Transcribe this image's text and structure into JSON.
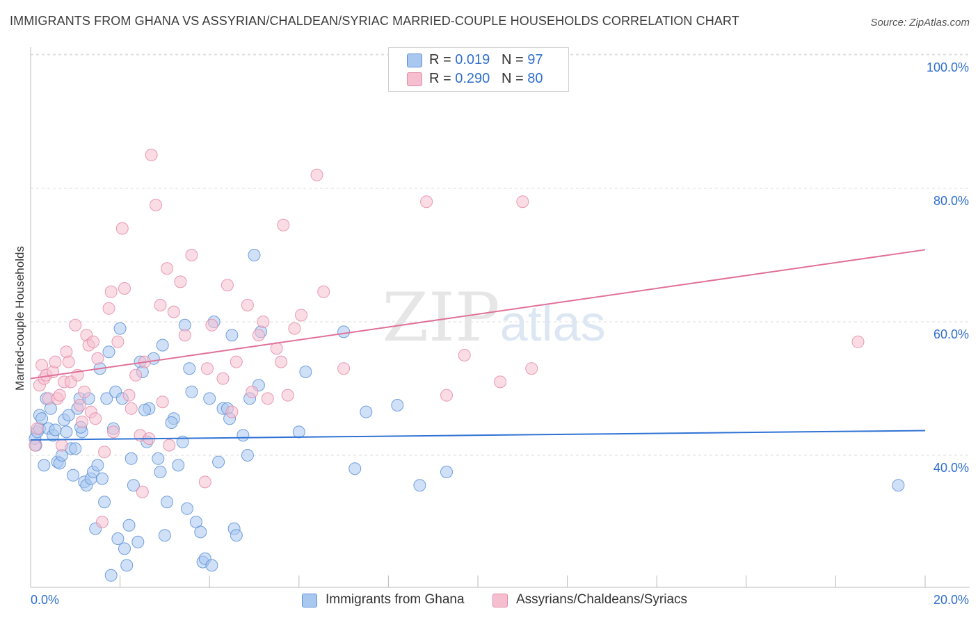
{
  "title": "IMMIGRANTS FROM GHANA VS ASSYRIAN/CHALDEAN/SYRIAC MARRIED-COUPLE HOUSEHOLDS CORRELATION CHART",
  "source": "Source: ZipAtlas.com",
  "watermark": "ZIPatlas",
  "legend": {
    "series1": {
      "r_label": "R =",
      "r_value": "0.019",
      "n_label": "N =",
      "n_value": "97"
    },
    "series2": {
      "r_label": "R =",
      "r_value": "0.290",
      "n_label": "N =",
      "n_value": "80"
    }
  },
  "colors": {
    "blue_fill": "#a9c8f0",
    "blue_stroke": "#5b8fd6",
    "blue_line": "#2f72d4",
    "pink_fill": "#f5bfd0",
    "pink_stroke": "#e48aa8",
    "pink_line": "#e07098",
    "axis_label": "#2f6fcf",
    "grid": "#dddddd"
  },
  "chart_data": {
    "type": "scatter",
    "title": "IMMIGRANTS FROM GHANA VS ASSYRIAN/CHALDEAN/SYRIAC MARRIED-COUPLE HOUSEHOLDS CORRELATION CHART",
    "xlabel": "",
    "ylabel": "Married-couple Households",
    "xlim": [
      0,
      20
    ],
    "ylim": [
      20,
      103
    ],
    "x_tick_labels": [
      "0.0%",
      "20.0%"
    ],
    "y_ticks": [
      40,
      60,
      80,
      100
    ],
    "y_tick_labels": [
      "40.0%",
      "60.0%",
      "80.0%",
      "100.0%"
    ],
    "legend_position": "top-center",
    "series": [
      {
        "name": "Immigrants from Ghana",
        "r": 0.019,
        "n": 97,
        "trend": {
          "x": [
            0,
            20
          ],
          "y": [
            42.3,
            43.7
          ]
        },
        "points": [
          [
            0.1,
            42.5
          ],
          [
            0.15,
            43.5
          ],
          [
            0.2,
            44
          ],
          [
            0.2,
            46
          ],
          [
            0.25,
            45.5
          ],
          [
            0.3,
            38.5
          ],
          [
            0.35,
            48.5
          ],
          [
            0.4,
            44
          ],
          [
            0.45,
            47
          ],
          [
            0.5,
            43
          ],
          [
            0.6,
            39
          ],
          [
            0.65,
            38.8
          ],
          [
            0.7,
            40
          ],
          [
            0.75,
            45.3
          ],
          [
            0.8,
            43.5
          ],
          [
            0.85,
            46
          ],
          [
            0.9,
            41
          ],
          [
            0.95,
            37
          ],
          [
            1.0,
            41
          ],
          [
            1.05,
            47
          ],
          [
            1.1,
            48.5
          ],
          [
            1.15,
            43.5
          ],
          [
            1.2,
            36
          ],
          [
            1.25,
            35.5
          ],
          [
            1.3,
            48.5
          ],
          [
            1.35,
            36.5
          ],
          [
            1.4,
            37.5
          ],
          [
            1.45,
            29
          ],
          [
            1.5,
            38.5
          ],
          [
            1.55,
            53
          ],
          [
            1.6,
            36.5
          ],
          [
            1.65,
            33
          ],
          [
            1.7,
            48.5
          ],
          [
            1.75,
            55.5
          ],
          [
            1.8,
            22
          ],
          [
            1.85,
            44
          ],
          [
            1.9,
            49.5
          ],
          [
            1.95,
            27.5
          ],
          [
            2.0,
            59
          ],
          [
            2.05,
            48.5
          ],
          [
            2.1,
            26
          ],
          [
            2.15,
            23.5
          ],
          [
            2.2,
            29.5
          ],
          [
            2.25,
            39.5
          ],
          [
            2.3,
            35.5
          ],
          [
            2.4,
            27
          ],
          [
            2.45,
            54
          ],
          [
            2.5,
            52.5
          ],
          [
            2.6,
            42
          ],
          [
            2.65,
            47
          ],
          [
            2.75,
            54.5
          ],
          [
            2.85,
            39.5
          ],
          [
            2.9,
            37.5
          ],
          [
            2.95,
            56.5
          ],
          [
            3.0,
            28
          ],
          [
            3.05,
            33
          ],
          [
            3.2,
            45.5
          ],
          [
            3.3,
            38.5
          ],
          [
            3.4,
            42
          ],
          [
            3.45,
            59.5
          ],
          [
            3.5,
            32
          ],
          [
            3.55,
            53
          ],
          [
            3.6,
            49.5
          ],
          [
            3.7,
            30
          ],
          [
            3.8,
            28.5
          ],
          [
            3.85,
            24
          ],
          [
            3.9,
            24.5
          ],
          [
            4.0,
            48.5
          ],
          [
            4.05,
            23.5
          ],
          [
            4.1,
            60
          ],
          [
            4.2,
            39
          ],
          [
            4.3,
            47
          ],
          [
            4.4,
            47
          ],
          [
            4.45,
            45.5
          ],
          [
            4.5,
            58
          ],
          [
            4.55,
            29
          ],
          [
            4.6,
            28
          ],
          [
            4.75,
            43
          ],
          [
            4.85,
            40
          ],
          [
            4.9,
            48.5
          ],
          [
            5.0,
            70
          ],
          [
            5.1,
            50.5
          ],
          [
            5.15,
            58.5
          ],
          [
            6.0,
            43.5
          ],
          [
            6.15,
            52.5
          ],
          [
            7.0,
            58.5
          ],
          [
            7.25,
            38
          ],
          [
            7.5,
            46.5
          ],
          [
            8.2,
            47.5
          ],
          [
            8.7,
            35.5
          ],
          [
            9.3,
            37.5
          ],
          [
            19.4,
            35.5
          ],
          [
            0.12,
            41.5
          ],
          [
            0.55,
            43.8
          ],
          [
            1.12,
            44.2
          ],
          [
            2.55,
            46.8
          ],
          [
            3.15,
            44.9
          ]
        ]
      },
      {
        "name": "Assyrians/Chaldeans/Syriacs",
        "r": 0.29,
        "n": 80,
        "trend": {
          "x": [
            0,
            20
          ],
          "y": [
            51.5,
            70.8
          ]
        },
        "points": [
          [
            0.1,
            41.5
          ],
          [
            0.15,
            44
          ],
          [
            0.2,
            50.5
          ],
          [
            0.25,
            53.5
          ],
          [
            0.3,
            51.5
          ],
          [
            0.35,
            52
          ],
          [
            0.4,
            48.5
          ],
          [
            0.5,
            52.5
          ],
          [
            0.55,
            54
          ],
          [
            0.6,
            48.5
          ],
          [
            0.65,
            49
          ],
          [
            0.7,
            41.5
          ],
          [
            0.75,
            51
          ],
          [
            0.8,
            55.5
          ],
          [
            0.85,
            54
          ],
          [
            0.9,
            51
          ],
          [
            1.0,
            59.5
          ],
          [
            1.05,
            52
          ],
          [
            1.1,
            47.5
          ],
          [
            1.15,
            45
          ],
          [
            1.2,
            49.5
          ],
          [
            1.25,
            58
          ],
          [
            1.3,
            56.5
          ],
          [
            1.35,
            46.5
          ],
          [
            1.4,
            57
          ],
          [
            1.45,
            45.5
          ],
          [
            1.5,
            54.5
          ],
          [
            1.6,
            30
          ],
          [
            1.65,
            40.5
          ],
          [
            1.75,
            62
          ],
          [
            1.8,
            64.5
          ],
          [
            1.85,
            43.5
          ],
          [
            1.95,
            57
          ],
          [
            2.05,
            74
          ],
          [
            2.1,
            65
          ],
          [
            2.2,
            49
          ],
          [
            2.25,
            47
          ],
          [
            2.35,
            52
          ],
          [
            2.45,
            43
          ],
          [
            2.5,
            34.5
          ],
          [
            2.55,
            54
          ],
          [
            2.65,
            42.5
          ],
          [
            2.7,
            85
          ],
          [
            2.8,
            77.5
          ],
          [
            2.9,
            62.5
          ],
          [
            2.95,
            48
          ],
          [
            3.05,
            68
          ],
          [
            3.1,
            41.5
          ],
          [
            3.2,
            61.5
          ],
          [
            3.35,
            66
          ],
          [
            3.45,
            58
          ],
          [
            3.6,
            70
          ],
          [
            3.9,
            36
          ],
          [
            3.95,
            53
          ],
          [
            4.05,
            59.5
          ],
          [
            4.3,
            51.5
          ],
          [
            4.4,
            65.5
          ],
          [
            4.5,
            46.5
          ],
          [
            4.6,
            54
          ],
          [
            4.85,
            62.5
          ],
          [
            4.95,
            49.5
          ],
          [
            5.1,
            58
          ],
          [
            5.2,
            60
          ],
          [
            5.3,
            48.5
          ],
          [
            5.5,
            56
          ],
          [
            5.6,
            54
          ],
          [
            5.65,
            74.5
          ],
          [
            5.75,
            49
          ],
          [
            5.9,
            59
          ],
          [
            6.05,
            61
          ],
          [
            6.4,
            82
          ],
          [
            6.55,
            64.5
          ],
          [
            7.0,
            53
          ],
          [
            8.85,
            78
          ],
          [
            9.3,
            49
          ],
          [
            9.7,
            55
          ],
          [
            10.5,
            51
          ],
          [
            11.0,
            78
          ],
          [
            11.2,
            53
          ],
          [
            18.5,
            57
          ]
        ]
      }
    ]
  },
  "bottom_legend": {
    "series1": "Immigrants from Ghana",
    "series2": "Assyrians/Chaldeans/Syriacs"
  }
}
